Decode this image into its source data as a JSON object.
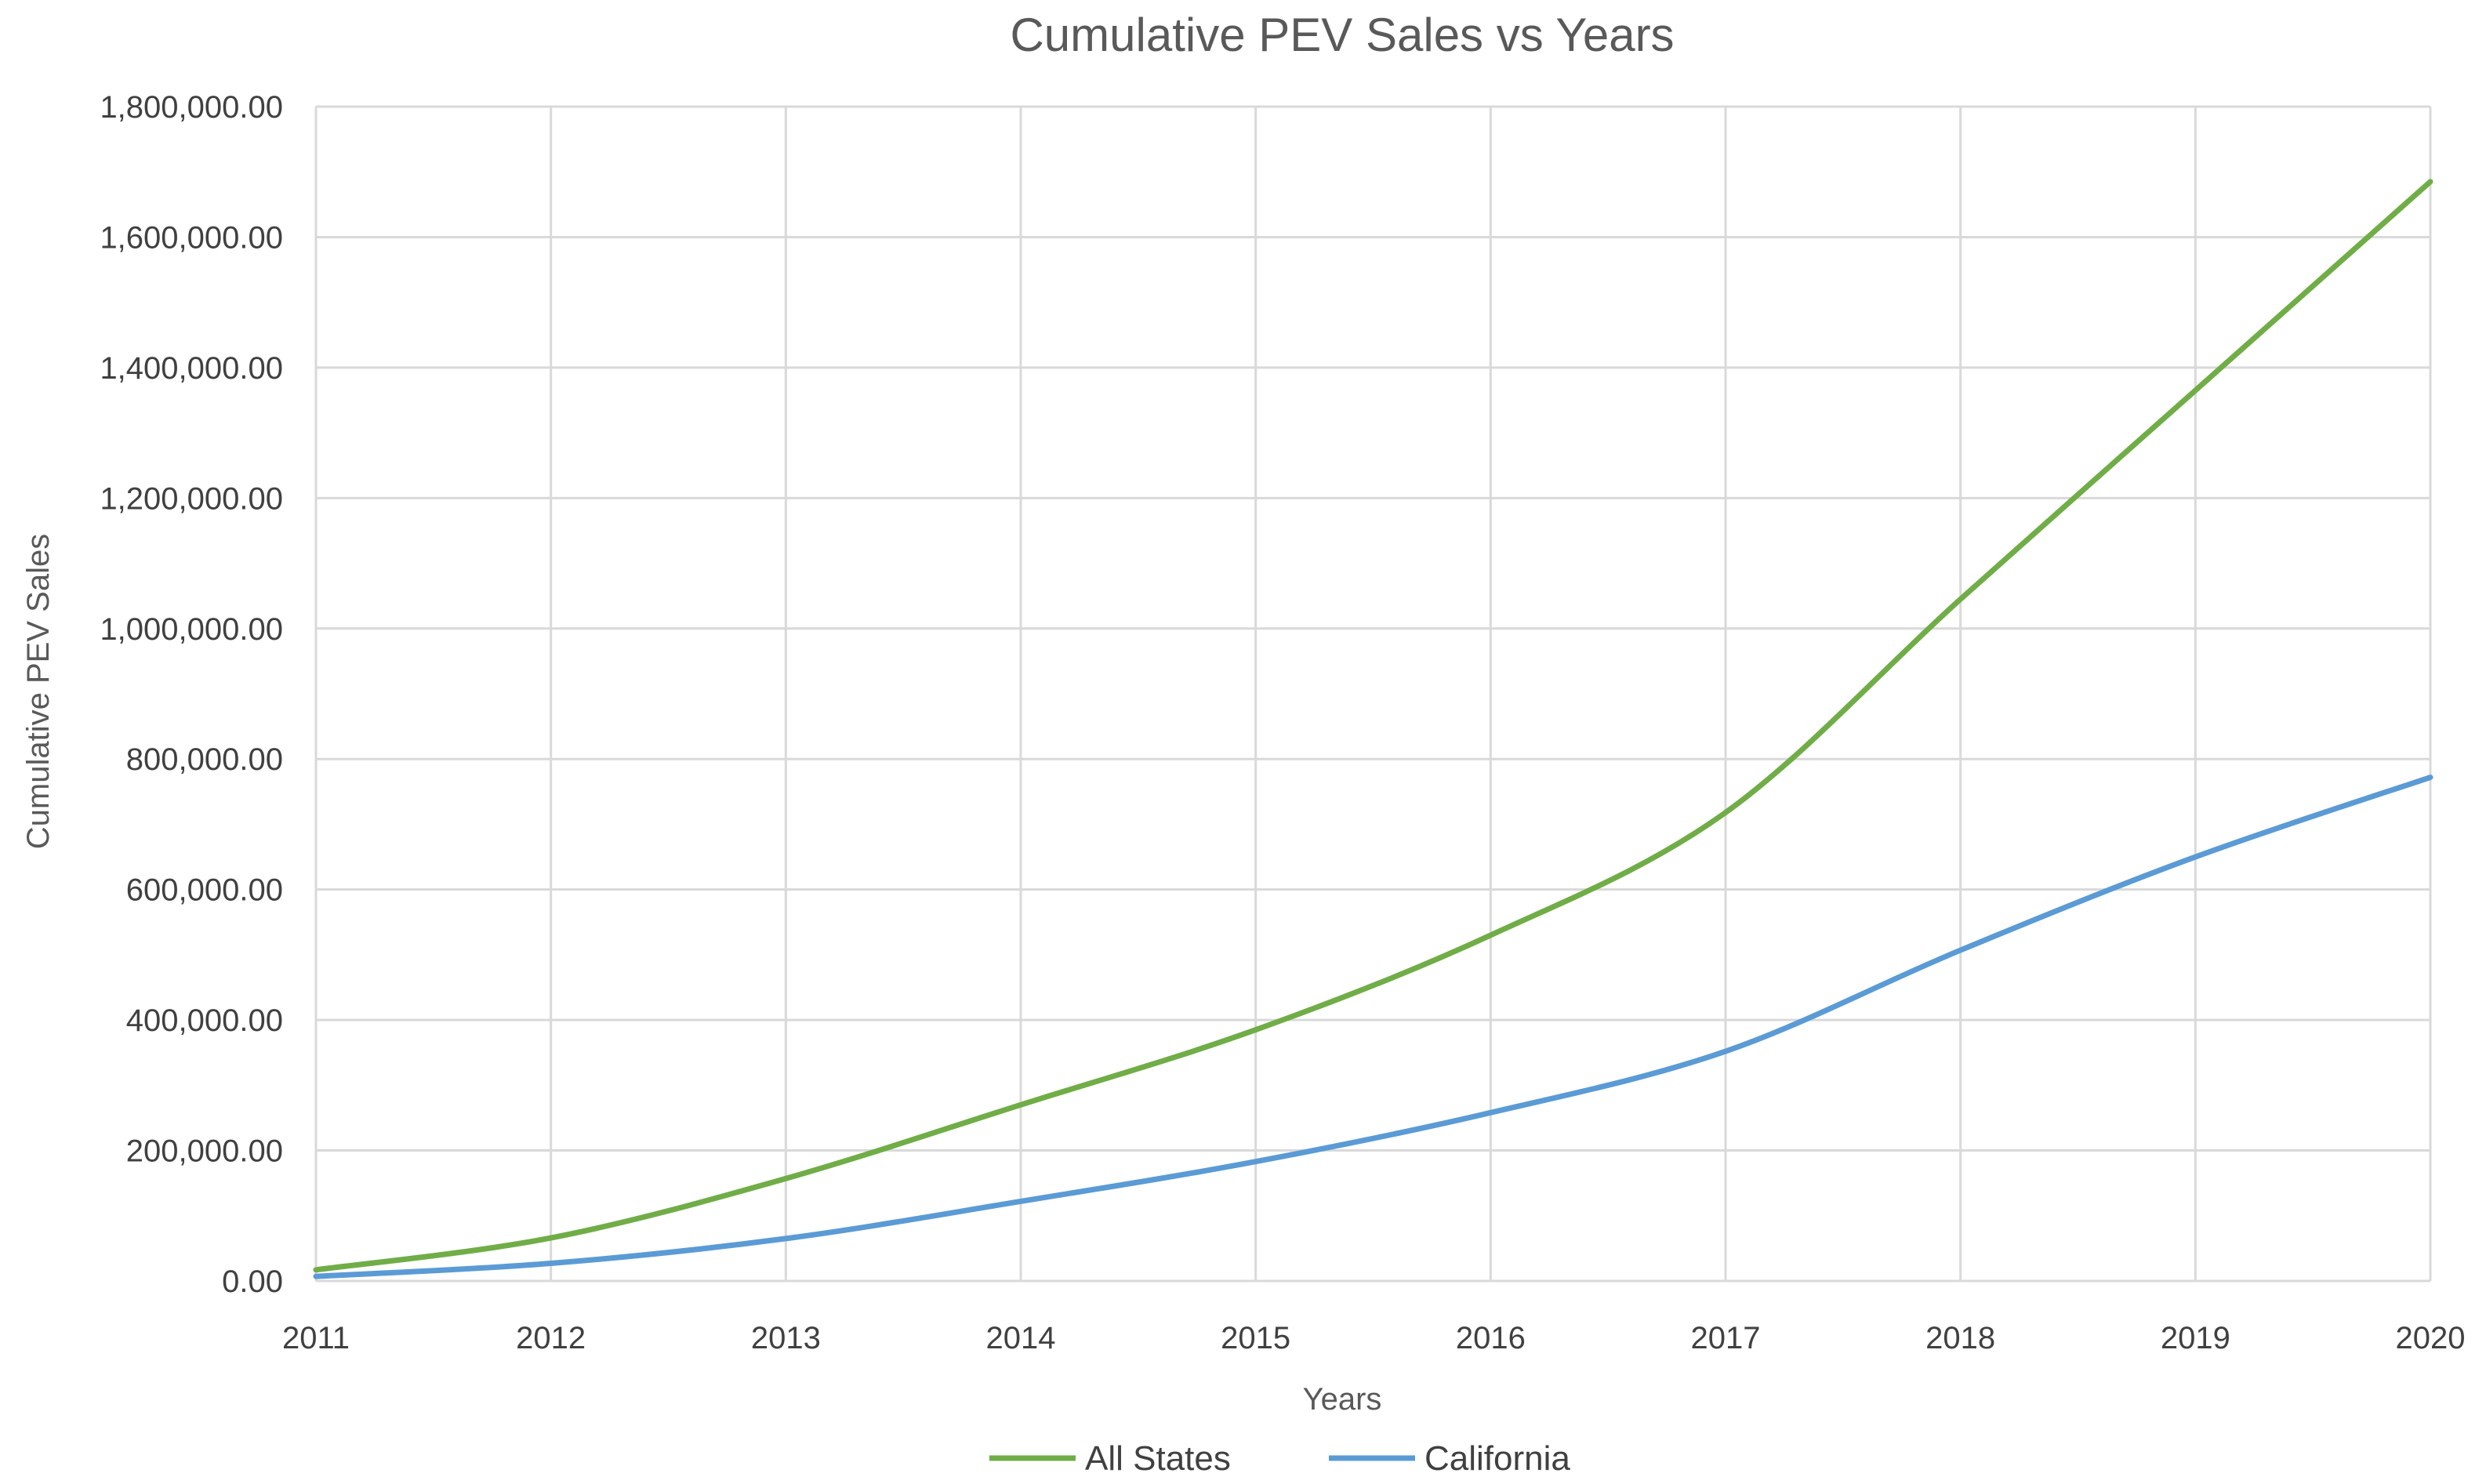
{
  "chart_data": {
    "type": "line",
    "title": "Cumulative PEV Sales vs Years",
    "xlabel": "Years",
    "ylabel": "Cumulative PEV Sales",
    "x": [
      2011,
      2012,
      2013,
      2014,
      2015,
      2016,
      2017,
      2018,
      2019,
      2020
    ],
    "x_tick_labels": [
      "2011",
      "2012",
      "2013",
      "2014",
      "2015",
      "2016",
      "2017",
      "2018",
      "2019",
      "2020"
    ],
    "xlim": [
      2011,
      2020
    ],
    "ylim": [
      0,
      1800000
    ],
    "y_ticks": [
      0,
      200000,
      400000,
      600000,
      800000,
      1000000,
      1200000,
      1400000,
      1600000,
      1800000
    ],
    "y_tick_labels": [
      "0.00",
      "200,000.00",
      "400,000.00",
      "600,000.00",
      "800,000.00",
      "1,000,000.00",
      "1,200,000.00",
      "1,400,000.00",
      "1,600,000.00",
      "1,800,000.00"
    ],
    "grid": true,
    "smooth": true,
    "legend_position": "bottom",
    "series": [
      {
        "name": "All States",
        "color": "#70ad47",
        "values": [
          17000,
          66000,
          157000,
          270000,
          385000,
          530000,
          718000,
          1045000,
          1365000,
          1685000
        ]
      },
      {
        "name": "California",
        "color": "#5b9bd5",
        "values": [
          7000,
          27000,
          65000,
          122000,
          183000,
          258000,
          352000,
          507000,
          650000,
          772000
        ]
      }
    ]
  }
}
